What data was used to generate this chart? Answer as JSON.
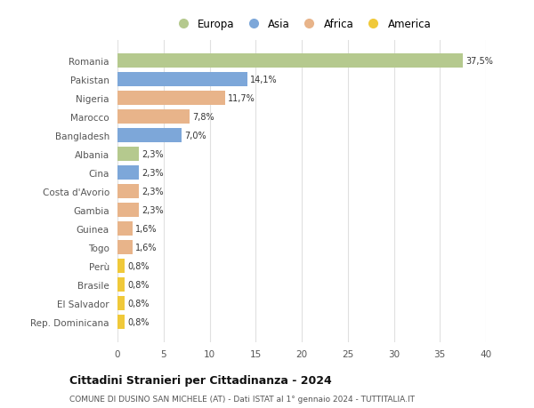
{
  "countries": [
    "Romania",
    "Pakistan",
    "Nigeria",
    "Marocco",
    "Bangladesh",
    "Albania",
    "Cina",
    "Costa d'Avorio",
    "Gambia",
    "Guinea",
    "Togo",
    "Perù",
    "Brasile",
    "El Salvador",
    "Rep. Dominicana"
  ],
  "values": [
    37.5,
    14.1,
    11.7,
    7.8,
    7.0,
    2.3,
    2.3,
    2.3,
    2.3,
    1.6,
    1.6,
    0.8,
    0.8,
    0.8,
    0.8
  ],
  "labels": [
    "37,5%",
    "14,1%",
    "11,7%",
    "7,8%",
    "7,0%",
    "2,3%",
    "2,3%",
    "2,3%",
    "2,3%",
    "1,6%",
    "1,6%",
    "0,8%",
    "0,8%",
    "0,8%",
    "0,8%"
  ],
  "continents": [
    "Europa",
    "Asia",
    "Africa",
    "Africa",
    "Asia",
    "Europa",
    "Asia",
    "Africa",
    "Africa",
    "Africa",
    "Africa",
    "America",
    "America",
    "America",
    "America"
  ],
  "colors": {
    "Europa": "#b5c98e",
    "Asia": "#7da7d9",
    "Africa": "#e8b48a",
    "America": "#f0c93a"
  },
  "legend_order": [
    "Europa",
    "Asia",
    "Africa",
    "America"
  ],
  "title": "Cittadini Stranieri per Cittadinanza - 2024",
  "subtitle": "COMUNE DI DUSINO SAN MICHELE (AT) - Dati ISTAT al 1° gennaio 2024 - TUTTITALIA.IT",
  "xlim": [
    0,
    40
  ],
  "xticks": [
    0,
    5,
    10,
    15,
    20,
    25,
    30,
    35,
    40
  ],
  "background_color": "#ffffff",
  "grid_color": "#e0e0e0",
  "bar_height": 0.75
}
